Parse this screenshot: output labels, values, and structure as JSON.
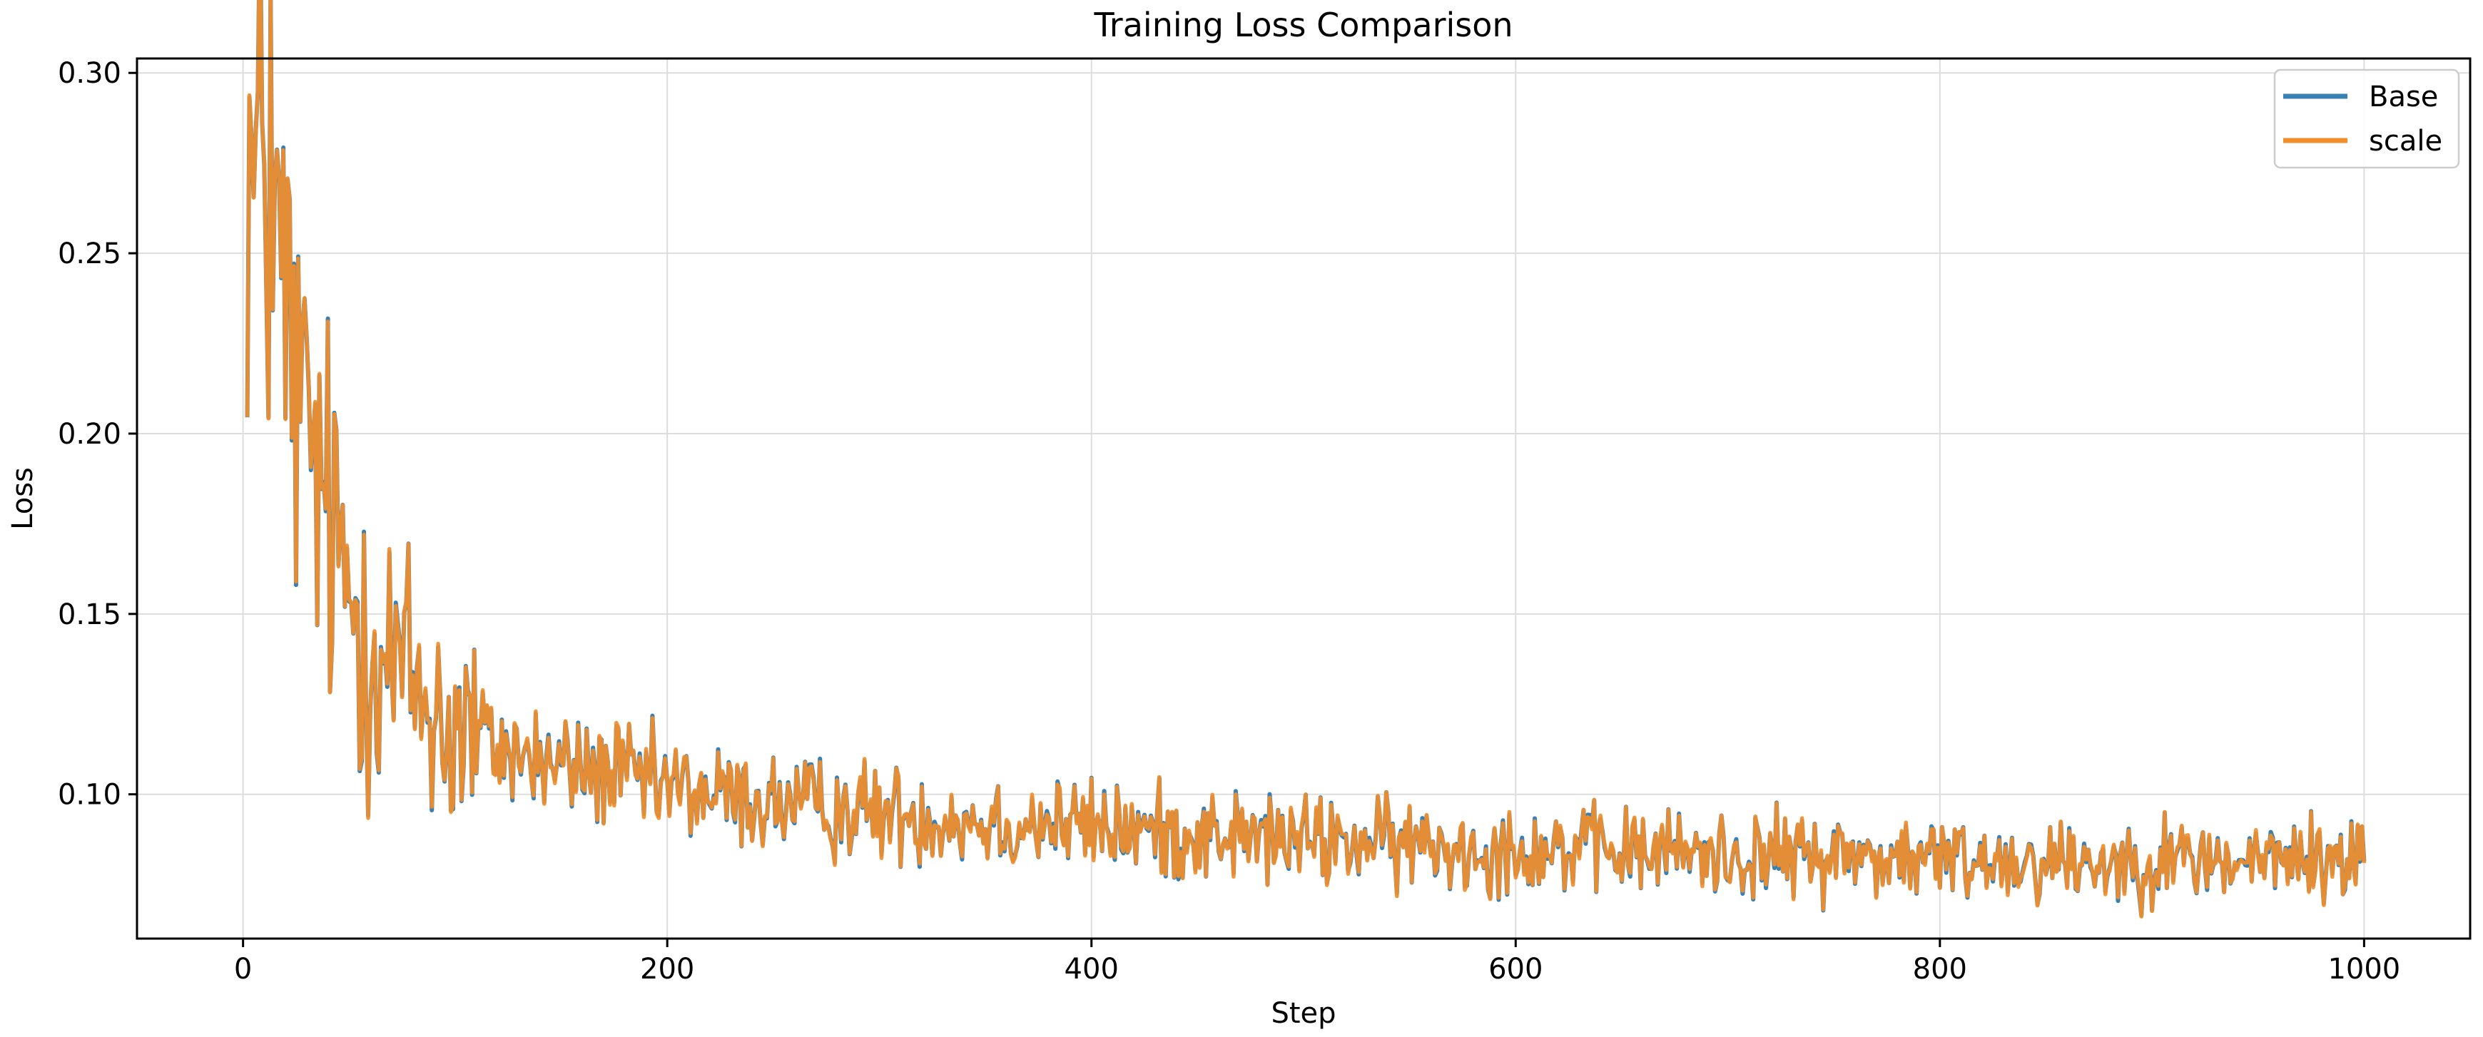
{
  "chart_data": {
    "type": "line",
    "title": "Training Loss Comparison",
    "xlabel": "Step",
    "ylabel": "Loss",
    "xlim": [
      -50,
      1050
    ],
    "ylim": [
      0.06,
      0.304
    ],
    "xticks": [
      0,
      200,
      400,
      600,
      800,
      1000
    ],
    "yticks": [
      0.1,
      0.15,
      0.2,
      0.25,
      0.3
    ],
    "xtick_labels": [
      "0",
      "200",
      "400",
      "600",
      "800",
      "1000"
    ],
    "ytick_labels": [
      "0.10",
      "0.15",
      "0.20",
      "0.25",
      "0.30"
    ],
    "grid": true,
    "legend_position": "top-right",
    "x_range": [
      2,
      1000
    ],
    "series": [
      {
        "name": "Base",
        "color": "#3a80b3",
        "points": [
          [
            2,
            0.289
          ],
          [
            5,
            0.26
          ],
          [
            8,
            0.272
          ],
          [
            10,
            0.285
          ],
          [
            12,
            0.265
          ],
          [
            13,
            0.292
          ],
          [
            15,
            0.245
          ],
          [
            18,
            0.242
          ],
          [
            22,
            0.225
          ],
          [
            25,
            0.212
          ],
          [
            28,
            0.198
          ],
          [
            32,
            0.2
          ],
          [
            35,
            0.186
          ],
          [
            40,
            0.176
          ],
          [
            45,
            0.163
          ],
          [
            50,
            0.158
          ],
          [
            55,
            0.148
          ],
          [
            60,
            0.147
          ],
          [
            65,
            0.138
          ],
          [
            70,
            0.137
          ],
          [
            75,
            0.134
          ],
          [
            80,
            0.13
          ],
          [
            85,
            0.127
          ],
          [
            90,
            0.124
          ],
          [
            95,
            0.12
          ],
          [
            100,
            0.118
          ],
          [
            110,
            0.116
          ],
          [
            120,
            0.113
          ],
          [
            130,
            0.111
          ],
          [
            140,
            0.109
          ],
          [
            150,
            0.108
          ],
          [
            160,
            0.107
          ],
          [
            170,
            0.106
          ],
          [
            180,
            0.105
          ],
          [
            190,
            0.103
          ],
          [
            200,
            0.102
          ],
          [
            220,
            0.1
          ],
          [
            240,
            0.098
          ],
          [
            260,
            0.097
          ],
          [
            280,
            0.096
          ],
          [
            300,
            0.095
          ],
          [
            320,
            0.094
          ],
          [
            340,
            0.093
          ],
          [
            360,
            0.092
          ],
          [
            380,
            0.092
          ],
          [
            400,
            0.091
          ],
          [
            420,
            0.09
          ],
          [
            440,
            0.089
          ],
          [
            460,
            0.089
          ],
          [
            480,
            0.088
          ],
          [
            500,
            0.087
          ],
          [
            520,
            0.087
          ],
          [
            540,
            0.086
          ],
          [
            560,
            0.086
          ],
          [
            580,
            0.085
          ],
          [
            600,
            0.085
          ],
          [
            620,
            0.085
          ],
          [
            640,
            0.084
          ],
          [
            660,
            0.084
          ],
          [
            680,
            0.084
          ],
          [
            700,
            0.083
          ],
          [
            720,
            0.083
          ],
          [
            740,
            0.083
          ],
          [
            760,
            0.083
          ],
          [
            780,
            0.082
          ],
          [
            800,
            0.082
          ],
          [
            820,
            0.082
          ],
          [
            840,
            0.082
          ],
          [
            860,
            0.082
          ],
          [
            880,
            0.081
          ],
          [
            900,
            0.082
          ],
          [
            920,
            0.082
          ],
          [
            940,
            0.081
          ],
          [
            960,
            0.082
          ],
          [
            980,
            0.082
          ],
          [
            995,
            0.081
          ],
          [
            1000,
            0.09
          ]
        ]
      },
      {
        "name": "scale",
        "color": "#f28e2b",
        "points": [
          [
            2,
            0.289
          ],
          [
            5,
            0.26
          ],
          [
            8,
            0.272
          ],
          [
            10,
            0.285
          ],
          [
            12,
            0.265
          ],
          [
            13,
            0.292
          ],
          [
            15,
            0.245
          ],
          [
            18,
            0.242
          ],
          [
            22,
            0.225
          ],
          [
            25,
            0.212
          ],
          [
            28,
            0.198
          ],
          [
            32,
            0.2
          ],
          [
            35,
            0.186
          ],
          [
            40,
            0.176
          ],
          [
            45,
            0.163
          ],
          [
            50,
            0.158
          ],
          [
            55,
            0.148
          ],
          [
            60,
            0.147
          ],
          [
            65,
            0.138
          ],
          [
            70,
            0.137
          ],
          [
            75,
            0.134
          ],
          [
            80,
            0.13
          ],
          [
            85,
            0.127
          ],
          [
            90,
            0.124
          ],
          [
            95,
            0.12
          ],
          [
            100,
            0.118
          ],
          [
            110,
            0.116
          ],
          [
            120,
            0.113
          ],
          [
            130,
            0.111
          ],
          [
            140,
            0.109
          ],
          [
            150,
            0.108
          ],
          [
            160,
            0.107
          ],
          [
            170,
            0.106
          ],
          [
            180,
            0.105
          ],
          [
            190,
            0.103
          ],
          [
            200,
            0.102
          ],
          [
            220,
            0.1
          ],
          [
            240,
            0.098
          ],
          [
            260,
            0.097
          ],
          [
            280,
            0.096
          ],
          [
            300,
            0.095
          ],
          [
            320,
            0.094
          ],
          [
            340,
            0.093
          ],
          [
            360,
            0.092
          ],
          [
            380,
            0.092
          ],
          [
            400,
            0.091
          ],
          [
            420,
            0.09
          ],
          [
            440,
            0.089
          ],
          [
            460,
            0.089
          ],
          [
            480,
            0.088
          ],
          [
            500,
            0.087
          ],
          [
            520,
            0.087
          ],
          [
            540,
            0.086
          ],
          [
            560,
            0.086
          ],
          [
            580,
            0.085
          ],
          [
            600,
            0.085
          ],
          [
            620,
            0.085
          ],
          [
            640,
            0.084
          ],
          [
            660,
            0.084
          ],
          [
            680,
            0.084
          ],
          [
            700,
            0.083
          ],
          [
            720,
            0.083
          ],
          [
            740,
            0.083
          ],
          [
            760,
            0.083
          ],
          [
            780,
            0.082
          ],
          [
            800,
            0.082
          ],
          [
            820,
            0.082
          ],
          [
            840,
            0.082
          ],
          [
            860,
            0.082
          ],
          [
            880,
            0.081
          ],
          [
            900,
            0.082
          ],
          [
            920,
            0.082
          ],
          [
            940,
            0.081
          ],
          [
            960,
            0.082
          ],
          [
            980,
            0.082
          ],
          [
            995,
            0.081
          ],
          [
            1000,
            0.09
          ]
        ]
      }
    ],
    "noise_amplitude": 0.0065
  }
}
